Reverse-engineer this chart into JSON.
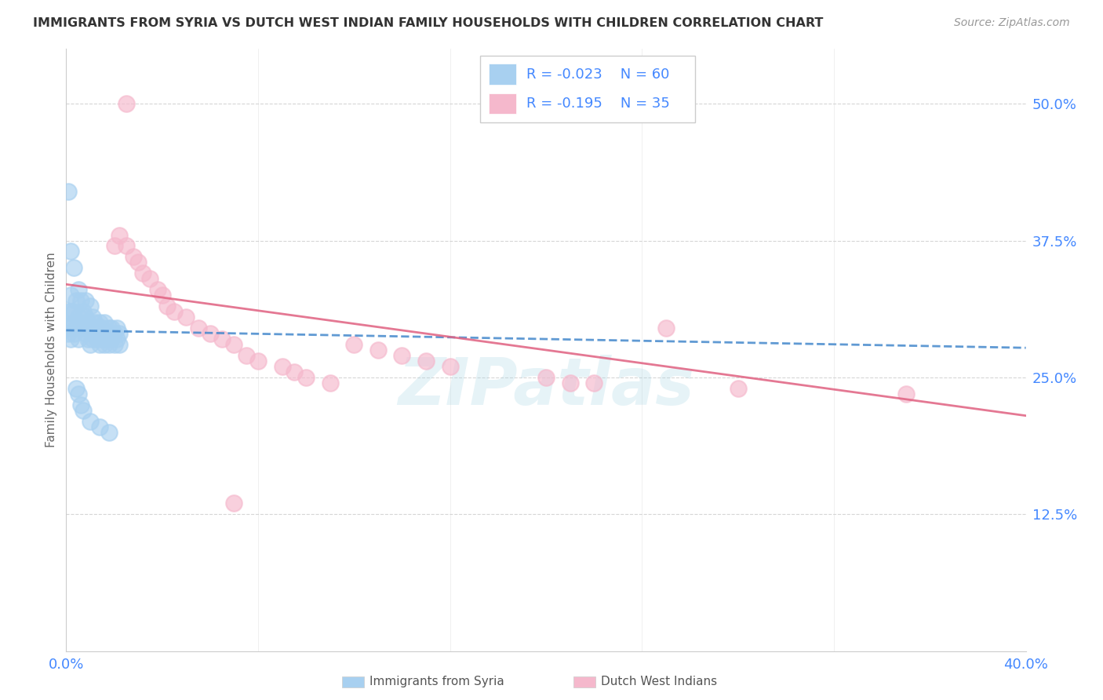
{
  "title": "IMMIGRANTS FROM SYRIA VS DUTCH WEST INDIAN FAMILY HOUSEHOLDS WITH CHILDREN CORRELATION CHART",
  "source": "Source: ZipAtlas.com",
  "ylabel": "Family Households with Children",
  "xlim": [
    0.0,
    0.4
  ],
  "ylim": [
    0.0,
    0.55
  ],
  "yticks": [
    0.125,
    0.25,
    0.375,
    0.5
  ],
  "ytick_labels": [
    "12.5%",
    "25.0%",
    "37.5%",
    "50.0%"
  ],
  "legend_r1": "-0.023",
  "legend_n1": "60",
  "legend_r2": "-0.195",
  "legend_n2": "35",
  "color_blue": "#a8d0f0",
  "color_pink": "#f5b8cc",
  "line_blue": "#4488cc",
  "line_pink": "#e06080",
  "watermark": "ZIPatlas",
  "background_color": "#ffffff",
  "grid_color": "#cccccc",
  "title_color": "#333333",
  "axis_color": "#4488ff",
  "syria_x": [
    0.001,
    0.001,
    0.001,
    0.002,
    0.002,
    0.002,
    0.002,
    0.003,
    0.003,
    0.003,
    0.004,
    0.004,
    0.005,
    0.005,
    0.005,
    0.006,
    0.006,
    0.007,
    0.007,
    0.008,
    0.008,
    0.008,
    0.009,
    0.009,
    0.01,
    0.01,
    0.01,
    0.011,
    0.011,
    0.012,
    0.012,
    0.013,
    0.013,
    0.014,
    0.014,
    0.015,
    0.015,
    0.016,
    0.016,
    0.017,
    0.018,
    0.018,
    0.019,
    0.019,
    0.02,
    0.02,
    0.021,
    0.021,
    0.022,
    0.022,
    0.001,
    0.002,
    0.003,
    0.004,
    0.005,
    0.006,
    0.007,
    0.01,
    0.014,
    0.018
  ],
  "syria_y": [
    0.29,
    0.295,
    0.31,
    0.285,
    0.295,
    0.31,
    0.325,
    0.29,
    0.3,
    0.31,
    0.295,
    0.32,
    0.285,
    0.305,
    0.33,
    0.3,
    0.32,
    0.295,
    0.31,
    0.29,
    0.305,
    0.32,
    0.285,
    0.3,
    0.28,
    0.295,
    0.315,
    0.285,
    0.305,
    0.29,
    0.3,
    0.285,
    0.295,
    0.28,
    0.3,
    0.285,
    0.295,
    0.28,
    0.3,
    0.285,
    0.28,
    0.295,
    0.285,
    0.295,
    0.28,
    0.29,
    0.285,
    0.295,
    0.28,
    0.29,
    0.42,
    0.365,
    0.35,
    0.24,
    0.235,
    0.225,
    0.22,
    0.21,
    0.205,
    0.2
  ],
  "dwi_x": [
    0.02,
    0.022,
    0.025,
    0.028,
    0.03,
    0.032,
    0.035,
    0.038,
    0.04,
    0.042,
    0.045,
    0.05,
    0.055,
    0.06,
    0.065,
    0.07,
    0.075,
    0.08,
    0.09,
    0.095,
    0.1,
    0.11,
    0.12,
    0.13,
    0.14,
    0.15,
    0.16,
    0.2,
    0.21,
    0.22,
    0.25,
    0.28,
    0.35,
    0.07,
    0.025
  ],
  "dwi_y": [
    0.37,
    0.38,
    0.37,
    0.36,
    0.355,
    0.345,
    0.34,
    0.33,
    0.325,
    0.315,
    0.31,
    0.305,
    0.295,
    0.29,
    0.285,
    0.28,
    0.27,
    0.265,
    0.26,
    0.255,
    0.25,
    0.245,
    0.28,
    0.275,
    0.27,
    0.265,
    0.26,
    0.25,
    0.245,
    0.245,
    0.295,
    0.24,
    0.235,
    0.135,
    0.5
  ]
}
